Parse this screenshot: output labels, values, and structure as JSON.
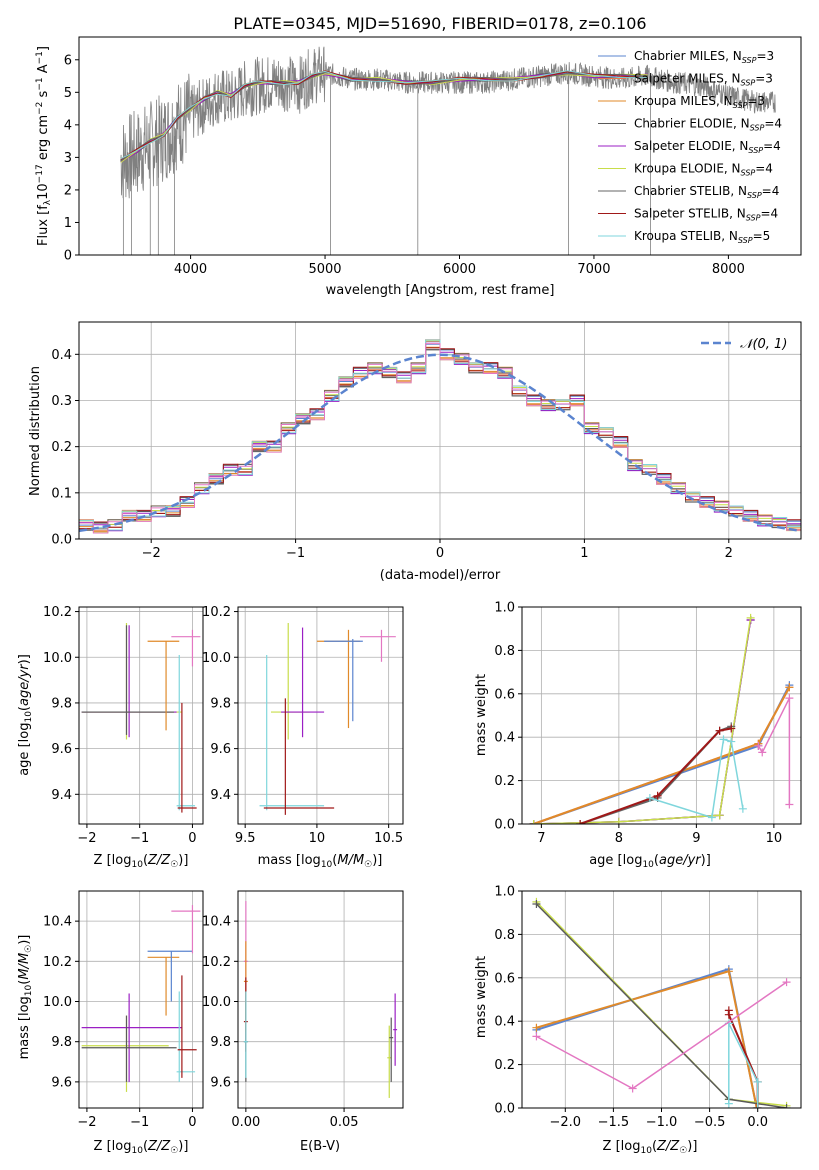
{
  "figure_title": "PLATE=0345, MJD=51690, FIBERID=0178, z=0.106",
  "colors": {
    "Chabrier MILES": "#5b84cf",
    "Salpeter MILES": "#e8774b",
    "Kroupa MILES": "#e08a2a",
    "Chabrier ELODIE": "#5a5a5a",
    "Salpeter ELODIE": "#9b1fc4",
    "Kroupa ELODIE": "#c8dd4a",
    "Chabrier STELIB": "#666666",
    "Salpeter STELIB": "#a01818",
    "Kroupa STELIB": "#7fd6dc",
    "data": "#808080",
    "normal": "#5b84cf"
  },
  "chart_data": [
    {
      "id": "spectrum",
      "type": "line",
      "title": "PLATE=0345, MJD=51690, FIBERID=0178, z=0.106",
      "xlabel": "wavelength [Angstrom, rest frame]",
      "ylabel_tex": "Flux [f_λ 10^-17 erg cm^-2 s^-1 A^-1]",
      "xlim": [
        3170,
        8540
      ],
      "ylim": [
        0,
        6.7
      ],
      "xticks": [
        4000,
        5000,
        6000,
        7000,
        8000
      ],
      "yticks": [
        0,
        1,
        2,
        3,
        4,
        5,
        6
      ],
      "legend_position": "upper right",
      "legend": [
        {
          "name": "Chabrier MILES",
          "nssp": "3"
        },
        {
          "name": "Salpeter MILES",
          "nssp": "3"
        },
        {
          "name": "Kroupa MILES",
          "nssp": "3"
        },
        {
          "name": "Chabrier ELODIE",
          "nssp": "4"
        },
        {
          "name": "Salpeter ELODIE",
          "nssp": "4"
        },
        {
          "name": "Kroupa ELODIE",
          "nssp": "4"
        },
        {
          "name": "Chabrier STELIB",
          "nssp": "4"
        },
        {
          "name": "Salpeter STELIB",
          "nssp": "4"
        },
        {
          "name": "Kroupa STELIB",
          "nssp": "5"
        }
      ],
      "data_series": {
        "x": [
          3480,
          3600,
          3700,
          3800,
          3900,
          4000,
          4100,
          4200,
          4300,
          4400,
          4500,
          4600,
          4700,
          4800,
          4900,
          5000,
          5200,
          5400,
          5600,
          5800,
          6000,
          6200,
          6400,
          6600,
          6800,
          7000,
          7200,
          7400,
          7600,
          7800,
          8000,
          8200,
          8350
        ],
        "y": [
          2.9,
          3.1,
          3.4,
          3.6,
          4.0,
          4.3,
          4.6,
          4.9,
          4.8,
          5.1,
          5.2,
          5.3,
          5.3,
          5.2,
          5.5,
          5.6,
          5.4,
          5.4,
          5.3,
          5.3,
          5.3,
          5.3,
          5.4,
          5.5,
          5.6,
          5.5,
          5.4,
          5.5,
          5.3,
          5.2,
          4.9,
          4.7,
          4.7
        ]
      },
      "model_series": {
        "x": [
          3480,
          3600,
          3700,
          3800,
          3900,
          4000,
          4100,
          4200,
          4300,
          4400,
          4500,
          4600,
          4700,
          4800,
          4900,
          5000,
          5200,
          5400,
          5600,
          5800,
          6000,
          6200,
          6400,
          6600,
          6800,
          7000,
          7200,
          7400
        ],
        "y": [
          2.9,
          3.2,
          3.5,
          3.7,
          4.2,
          4.5,
          4.8,
          5.0,
          4.9,
          5.2,
          5.3,
          5.3,
          5.3,
          5.3,
          5.5,
          5.6,
          5.4,
          5.4,
          5.3,
          5.3,
          5.4,
          5.4,
          5.4,
          5.5,
          5.6,
          5.5,
          5.5,
          5.5
        ]
      }
    },
    {
      "id": "residuals",
      "type": "step",
      "xlabel": "(data-model)/error",
      "ylabel": "Normed distribution",
      "xlim": [
        -2.5,
        2.5
      ],
      "ylim": [
        0,
        0.47
      ],
      "xticks": [
        -2,
        -1,
        0,
        1,
        2
      ],
      "yticks": [
        0.0,
        0.1,
        0.2,
        0.3,
        0.4
      ],
      "legend_position": "upper right",
      "normal_label": "𝒩(0, 1)",
      "histogram_centers": [
        -2.45,
        -2.35,
        -2.25,
        -2.15,
        -2.05,
        -1.95,
        -1.85,
        -1.75,
        -1.65,
        -1.55,
        -1.45,
        -1.35,
        -1.25,
        -1.15,
        -1.05,
        -0.95,
        -0.85,
        -0.75,
        -0.65,
        -0.55,
        -0.45,
        -0.35,
        -0.25,
        -0.15,
        -0.05,
        0.05,
        0.15,
        0.25,
        0.35,
        0.45,
        0.55,
        0.65,
        0.75,
        0.85,
        0.95,
        1.05,
        1.15,
        1.25,
        1.35,
        1.45,
        1.55,
        1.65,
        1.75,
        1.85,
        1.95,
        2.05,
        2.15,
        2.25,
        2.35,
        2.45
      ],
      "histogram_values": [
        0.03,
        0.025,
        0.03,
        0.05,
        0.05,
        0.06,
        0.06,
        0.08,
        0.11,
        0.13,
        0.15,
        0.15,
        0.2,
        0.2,
        0.24,
        0.26,
        0.27,
        0.31,
        0.34,
        0.36,
        0.37,
        0.36,
        0.35,
        0.37,
        0.42,
        0.4,
        0.39,
        0.37,
        0.37,
        0.36,
        0.32,
        0.3,
        0.29,
        0.29,
        0.3,
        0.24,
        0.23,
        0.21,
        0.16,
        0.15,
        0.13,
        0.11,
        0.09,
        0.08,
        0.07,
        0.06,
        0.05,
        0.04,
        0.035,
        0.03
      ]
    },
    {
      "id": "age_vs_Z",
      "type": "errorbar",
      "xlabel": "Z [log10(Z/Z☉)]",
      "ylabel": "age  [log10(age/yr)]",
      "xlim": [
        -2.15,
        0.2
      ],
      "ylim": [
        9.27,
        10.22
      ],
      "xticks": [
        -2,
        -1,
        0
      ],
      "yticks": [
        9.4,
        9.6,
        9.8,
        10.0,
        10.2
      ]
    },
    {
      "id": "age_vs_mass",
      "type": "errorbar",
      "xlabel": "mass [log10(M/M☉)]",
      "ylabel": "",
      "xlim": [
        9.45,
        10.6
      ],
      "ylim": [
        9.27,
        10.22
      ],
      "xticks": [
        9.5,
        10.0,
        10.5
      ],
      "yticks": [
        9.4,
        9.6,
        9.8,
        10.0,
        10.2
      ]
    },
    {
      "id": "mass_weight_vs_age",
      "type": "line",
      "xlabel": "age  [log10(age/yr)]",
      "ylabel": "mass weight",
      "xlim": [
        6.75,
        10.35
      ],
      "ylim": [
        0.0,
        1.0
      ],
      "xticks": [
        7,
        8,
        9,
        10
      ],
      "yticks": [
        0.0,
        0.2,
        0.4,
        0.6,
        0.8,
        1.0
      ],
      "series": [
        {
          "name": "Chabrier MILES",
          "x": [
            6.9,
            9.8,
            10.2
          ],
          "y": [
            0.0,
            0.36,
            0.64
          ]
        },
        {
          "name": "Salpeter MILES",
          "x": [
            6.9,
            9.8,
            10.2
          ],
          "y": [
            0.0,
            0.37,
            0.63
          ]
        },
        {
          "name": "Kroupa MILES",
          "x": [
            6.9,
            9.8,
            10.2
          ],
          "y": [
            0.0,
            0.37,
            0.63
          ]
        },
        {
          "name": "Chabrier ELODIE",
          "x": [
            6.9,
            8.0,
            9.3,
            9.7
          ],
          "y": [
            0.0,
            0.01,
            0.04,
            0.94
          ]
        },
        {
          "name": "Salpeter ELODIE",
          "x": [
            6.9,
            8.0,
            9.3,
            9.7
          ],
          "y": [
            0.0,
            0.01,
            0.04,
            0.94
          ]
        },
        {
          "name": "Kroupa ELODIE",
          "x": [
            6.9,
            8.0,
            9.3,
            9.7
          ],
          "y": [
            0.0,
            0.01,
            0.04,
            0.95
          ]
        },
        {
          "name": "Chabrier STELIB",
          "x": [
            7.5,
            8.5,
            9.3,
            9.45
          ],
          "y": [
            0.0,
            0.12,
            0.43,
            0.45
          ]
        },
        {
          "name": "Salpeter STELIB",
          "x": [
            7.5,
            8.5,
            9.3,
            9.45
          ],
          "y": [
            0.0,
            0.13,
            0.43,
            0.44
          ]
        },
        {
          "name": "Kroupa STELIB",
          "x": [
            8.4,
            9.2,
            9.35,
            9.45,
            9.6
          ],
          "y": [
            0.12,
            0.03,
            0.39,
            0.38,
            0.07
          ]
        },
        {
          "name": "pink",
          "x": [
            9.8,
            9.85,
            10.2,
            10.2
          ],
          "y": [
            0.36,
            0.33,
            0.58,
            0.09
          ]
        }
      ]
    },
    {
      "id": "mass_vs_Z",
      "type": "errorbar",
      "xlabel": "Z [log10(Z/Z☉)]",
      "ylabel": "mass [log10(M/M☉)]",
      "xlim": [
        -2.15,
        0.2
      ],
      "ylim": [
        9.47,
        10.55
      ],
      "xticks": [
        -2,
        -1,
        0
      ],
      "yticks": [
        9.6,
        9.8,
        10.0,
        10.2,
        10.4
      ]
    },
    {
      "id": "mass_vs_ebv",
      "type": "errorbar",
      "xlabel": "E(B-V)",
      "ylabel": "",
      "xlim": [
        -0.004,
        0.08
      ],
      "ylim": [
        9.47,
        10.55
      ],
      "xticks": [
        0.0,
        0.05
      ],
      "yticks": [
        9.6,
        9.8,
        10.0,
        10.2,
        10.4
      ]
    },
    {
      "id": "mass_weight_vs_Z",
      "type": "line",
      "xlabel": "Z [log10(Z/Z☉)]",
      "ylabel": "mass weight",
      "xlim": [
        -2.45,
        0.45
      ],
      "ylim": [
        0.0,
        1.0
      ],
      "xticks": [
        -2.0,
        -1.5,
        -1.0,
        -0.5,
        0.0
      ],
      "yticks": [
        0.0,
        0.2,
        0.4,
        0.6,
        0.8,
        1.0
      ],
      "series": [
        {
          "name": "Chabrier MILES",
          "x": [
            -2.3,
            -0.3,
            -0.01
          ],
          "y": [
            0.36,
            0.64,
            0.0
          ]
        },
        {
          "name": "Kroupa MILES",
          "x": [
            -2.3,
            -0.3,
            -0.01
          ],
          "y": [
            0.37,
            0.63,
            0.0
          ]
        },
        {
          "name": "Kroupa ELODIE",
          "x": [
            -2.3,
            -0.3,
            0.3
          ],
          "y": [
            0.95,
            0.04,
            0.01
          ]
        },
        {
          "name": "Chabrier ELODIE",
          "x": [
            -2.3,
            -0.3,
            0.3
          ],
          "y": [
            0.94,
            0.04,
            0.0
          ]
        },
        {
          "name": "Salpeter STELIB",
          "x": [
            -0.3,
            -0.3,
            0.0,
            0.0
          ],
          "y": [
            0.45,
            0.43,
            0.12,
            0.0
          ]
        },
        {
          "name": "Kroupa STELIB",
          "x": [
            -0.3,
            -0.3,
            0.0,
            0.0
          ],
          "y": [
            0.02,
            0.39,
            0.12,
            0.0
          ]
        },
        {
          "name": "pink",
          "x": [
            -2.3,
            -1.3,
            0.3
          ],
          "y": [
            0.33,
            0.09,
            0.58
          ]
        }
      ]
    }
  ]
}
